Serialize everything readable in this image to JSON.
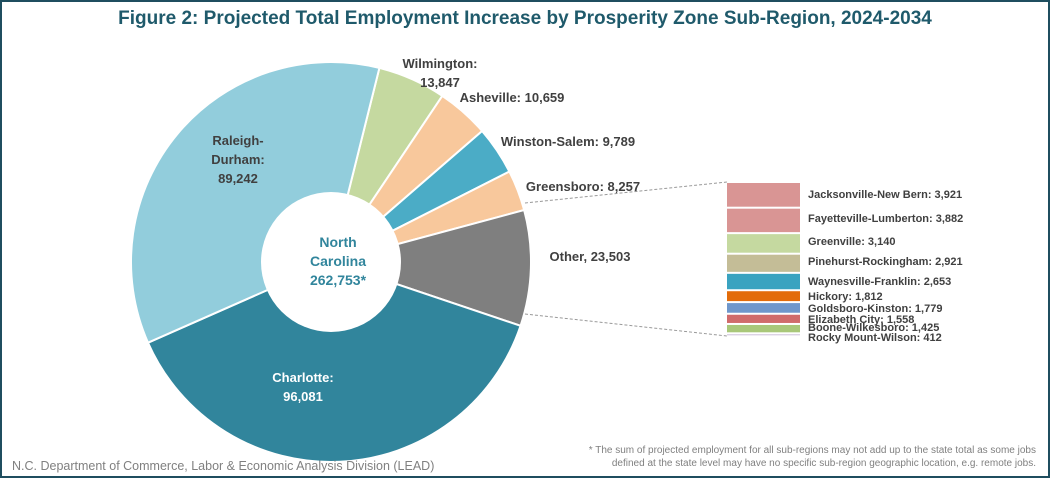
{
  "chart_data": {
    "type": "pie",
    "title": "Figure 2: Projected Total Employment Increase by Prosperity Zone Sub-Region, 2024-2034",
    "center_label": [
      "North",
      "Carolina",
      "262,753*"
    ],
    "slices": [
      {
        "name": "Wilmington",
        "value": 13847,
        "label": [
          "Wilmington:",
          "13,847"
        ],
        "color": "#c5d9a0"
      },
      {
        "name": "Asheville",
        "value": 10659,
        "label": [
          "Asheville: 10,659"
        ],
        "color": "#f8c89c"
      },
      {
        "name": "Winston-Salem",
        "value": 9789,
        "label": [
          "Winston-Salem: 9,789"
        ],
        "color": "#4bacc6"
      },
      {
        "name": "Greensboro",
        "value": 8257,
        "label": [
          "Greensboro: 8,257"
        ],
        "color": "#f8c89c"
      },
      {
        "name": "Other",
        "value": 23503,
        "label": [
          "Other, 23,503"
        ],
        "color": "#7f7f7f"
      },
      {
        "name": "Charlotte",
        "value": 96081,
        "label": [
          "Charlotte:",
          "96,081"
        ],
        "color": "#31859c"
      },
      {
        "name": "Raleigh-Durham",
        "value": 89242,
        "label": [
          "Raleigh-",
          "Durham:",
          "89,242"
        ],
        "color": "#92cddc"
      }
    ],
    "other_breakdown": [
      {
        "name": "Jacksonville-New Bern",
        "value": 3921,
        "label": "Jacksonville-New Bern: 3,921",
        "color": "#d99594"
      },
      {
        "name": "Fayetteville-Lumberton",
        "value": 3882,
        "label": "Fayetteville-Lumberton: 3,882",
        "color": "#d99594"
      },
      {
        "name": "Greenville",
        "value": 3140,
        "label": "Greenville: 3,140",
        "color": "#c5d9a0"
      },
      {
        "name": "Pinehurst-Rockingham",
        "value": 2921,
        "label": "Pinehurst-Rockingham: 2,921",
        "color": "#c4bd97"
      },
      {
        "name": "Waynesville-Franklin",
        "value": 2653,
        "label": "Waynesville-Franklin: 2,653",
        "color": "#3aa3c0"
      },
      {
        "name": "Hickory",
        "value": 1812,
        "label": "Hickory: 1,812",
        "color": "#e36c0a"
      },
      {
        "name": "Goldsboro-Kinston",
        "value": 1779,
        "label": "Goldsboro-Kinston: 1,779",
        "color": "#6f97cb"
      },
      {
        "name": "Elizabeth City",
        "value": 1558,
        "label": "Elizabeth City: 1,558",
        "color": "#d06b6b"
      },
      {
        "name": "Boone-Wilkesboro",
        "value": 1425,
        "label": "Boone-Wilkesboro: 1,425",
        "color": "#a9c77a"
      },
      {
        "name": "Rocky Mount-Wilson",
        "value": 412,
        "label": "Rocky Mount-Wilson: 412",
        "color": "#ccc0da"
      }
    ]
  },
  "footer": {
    "source": "N.C. Department of Commerce,  Labor & Economic Analysis Division (LEAD)",
    "note": "* The sum of projected employment for all sub-regions may not add up to the state total as some jobs defined at the state level may have no specific sub-region geographic location, e.g. remote jobs."
  }
}
